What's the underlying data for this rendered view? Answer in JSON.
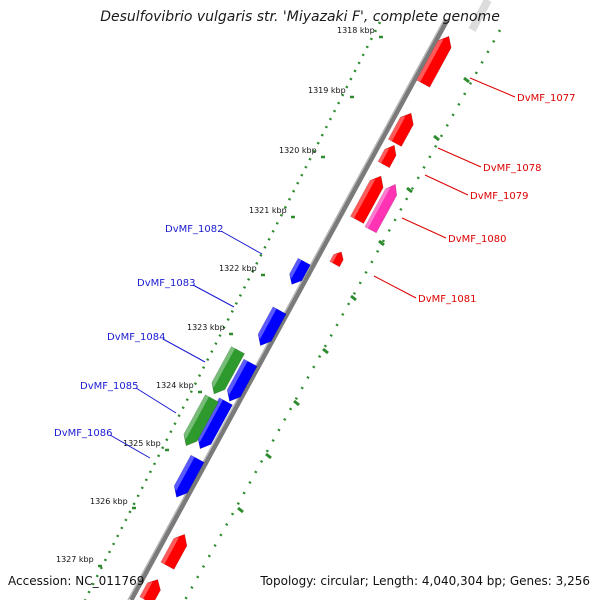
{
  "title": "Desulfovibrio vulgaris str. 'Miyazaki F', complete genome",
  "accession_text": "Accession: NC_011769",
  "summary_text": "Topology: circular; Length: 4,040,304 bp; Genes: 3,256",
  "colors": {
    "backbone": "#8c8c8c",
    "tick": "#2e8b2e",
    "forward_gene": "#ff0000",
    "forward_gene_highlight": "#ff33b4",
    "reverse_gene": "#0000ff",
    "reverse_gene_alt": "#2e9a2e",
    "forward_label": "#dd0000",
    "reverse_label": "#1a1ad0"
  },
  "ticks": [
    {
      "label": "1318 kbp"
    },
    {
      "label": "1319 kbp"
    },
    {
      "label": "1320 kbp"
    },
    {
      "label": "1321 kbp"
    },
    {
      "label": "1322 kbp"
    },
    {
      "label": "1323 kbp"
    },
    {
      "label": "1324 kbp"
    },
    {
      "label": "1325 kbp"
    },
    {
      "label": "1326 kbp"
    },
    {
      "label": "1327 kbp"
    }
  ],
  "forward_labels": [
    "DvMF_1077",
    "DvMF_1078",
    "DvMF_1079",
    "DvMF_1080",
    "DvMF_1081"
  ],
  "reverse_labels": [
    "DvMF_1082",
    "DvMF_1083",
    "DvMF_1084",
    "DvMF_1085",
    "DvMF_1086"
  ]
}
